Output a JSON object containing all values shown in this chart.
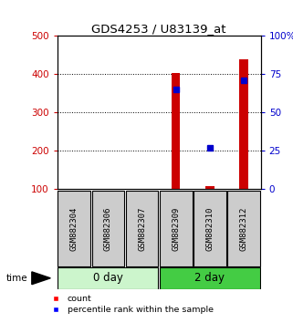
{
  "title": "GDS4253 / U83139_at",
  "samples": [
    "GSM882304",
    "GSM882306",
    "GSM882307",
    "GSM882309",
    "GSM882310",
    "GSM882312"
  ],
  "groups": [
    {
      "label": "0 day",
      "indices": [
        0,
        1,
        2
      ],
      "color": "#ccf5cc"
    },
    {
      "label": "2 day",
      "indices": [
        3,
        4,
        5
      ],
      "color": "#44cc44"
    }
  ],
  "count_values": [
    null,
    null,
    null,
    403,
    107,
    437
  ],
  "percentile_values": [
    null,
    null,
    null,
    65,
    27,
    71
  ],
  "ylim_left": [
    100,
    500
  ],
  "ylim_right": [
    0,
    100
  ],
  "yticks_left": [
    100,
    200,
    300,
    400,
    500
  ],
  "yticks_right": [
    0,
    25,
    50,
    75,
    100
  ],
  "yticklabels_right": [
    "0",
    "25",
    "50",
    "75",
    "100%"
  ],
  "left_tick_color": "#cc0000",
  "right_tick_color": "#0000cc",
  "bar_color": "#cc0000",
  "dot_color": "#0000cc",
  "bg_color": "#ffffff",
  "box_bg": "#cccccc",
  "figsize": [
    3.21,
    3.54
  ],
  "dpi": 100
}
